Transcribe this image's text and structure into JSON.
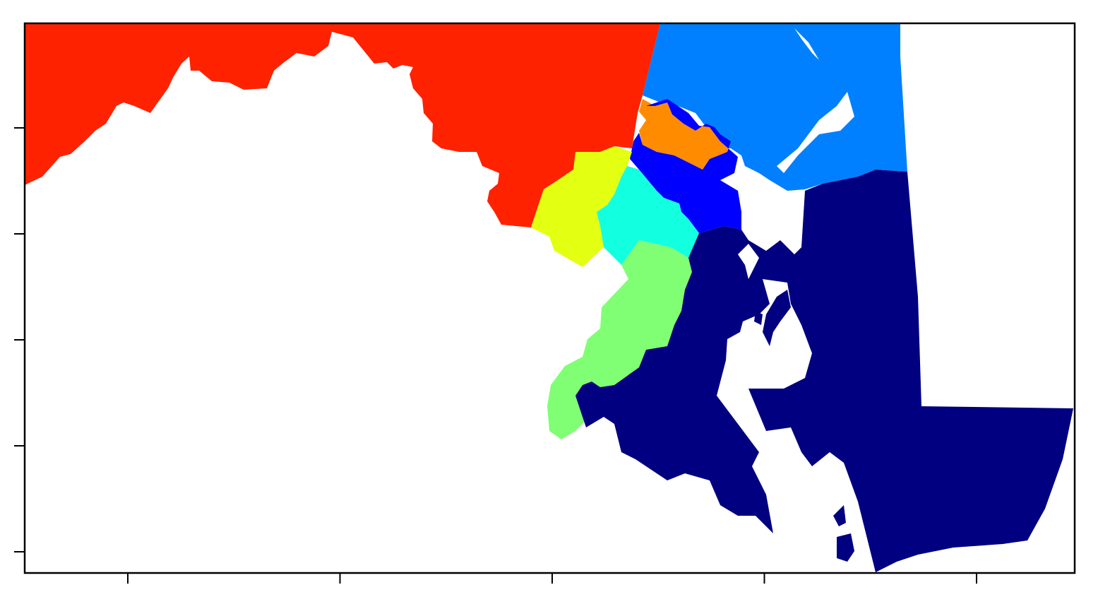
{
  "map": {
    "type": "choropleth",
    "palette": "jet",
    "background": "#ffffff",
    "frame_color": "#000000",
    "tick_labels_shown": false,
    "x_tick_count": 5,
    "y_tick_count": 5,
    "regions": [
      {
        "id": "district-red",
        "color": "#ff2200"
      },
      {
        "id": "district-sky-blue",
        "color": "#0080ff"
      },
      {
        "id": "district-orange",
        "color": "#ff8c00"
      },
      {
        "id": "district-blue",
        "color": "#0000ff"
      },
      {
        "id": "district-yellow",
        "color": "#e3ff12"
      },
      {
        "id": "district-cyan",
        "color": "#12ffe0"
      },
      {
        "id": "district-green",
        "color": "#80ff74"
      },
      {
        "id": "district-navy",
        "color": "#000080"
      }
    ]
  }
}
